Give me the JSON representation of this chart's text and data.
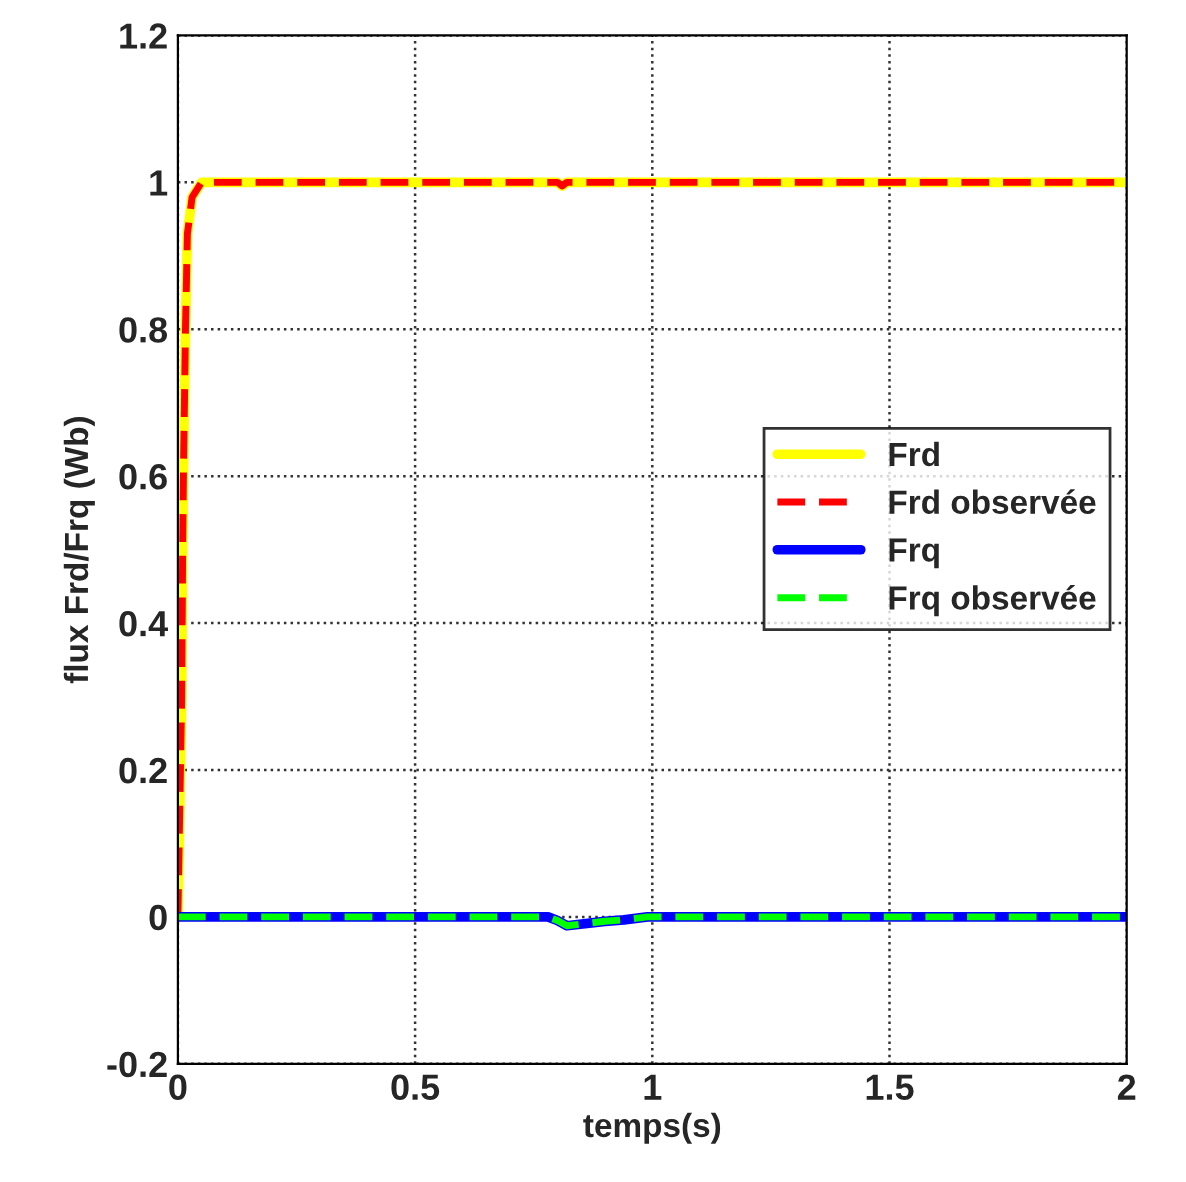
{
  "chart_data": {
    "type": "line",
    "xlabel": "temps(s)",
    "ylabel": "flux Frd/Frq (Wb)",
    "xlim": [
      0,
      2
    ],
    "ylim": [
      -0.2,
      1.2
    ],
    "xticks": [
      0,
      0.5,
      1,
      1.5,
      2
    ],
    "yticks": [
      -0.2,
      0,
      0.2,
      0.4,
      0.6,
      0.8,
      1,
      1.2
    ],
    "grid": true,
    "legend": "right",
    "series": [
      {
        "name": "Frd",
        "color": "#ffff00",
        "line_style": "solid",
        "x": [
          0,
          0.008,
          0.01,
          0.012,
          0.016,
          0.02,
          0.03,
          0.05,
          0.8,
          0.81,
          0.82,
          2
        ],
        "values": [
          0,
          0.3,
          0.5,
          0.62,
          0.8,
          0.93,
          0.98,
          1,
          1,
          0.995,
          1,
          1
        ]
      },
      {
        "name": "Frd observée",
        "color": "#ff0000",
        "line_style": "dashed",
        "x": [
          0,
          0.008,
          0.01,
          0.012,
          0.016,
          0.02,
          0.03,
          0.05,
          0.8,
          0.81,
          0.82,
          2
        ],
        "values": [
          0,
          0.3,
          0.5,
          0.62,
          0.8,
          0.93,
          0.98,
          1,
          1,
          0.995,
          1,
          1
        ]
      },
      {
        "name": "Frq",
        "color": "#0000ff",
        "line_style": "solid",
        "x": [
          0,
          0.78,
          0.8,
          0.82,
          0.9,
          0.94,
          0.99,
          2
        ],
        "values": [
          0,
          0,
          -0.005,
          -0.012,
          -0.006,
          -0.004,
          0,
          0
        ]
      },
      {
        "name": "Frq observée",
        "color": "#00ff00",
        "line_style": "dashed",
        "x": [
          0,
          0.78,
          0.8,
          0.82,
          0.9,
          0.94,
          0.99,
          2
        ],
        "values": [
          0,
          0,
          -0.005,
          -0.012,
          -0.006,
          -0.004,
          0,
          0
        ]
      }
    ]
  }
}
